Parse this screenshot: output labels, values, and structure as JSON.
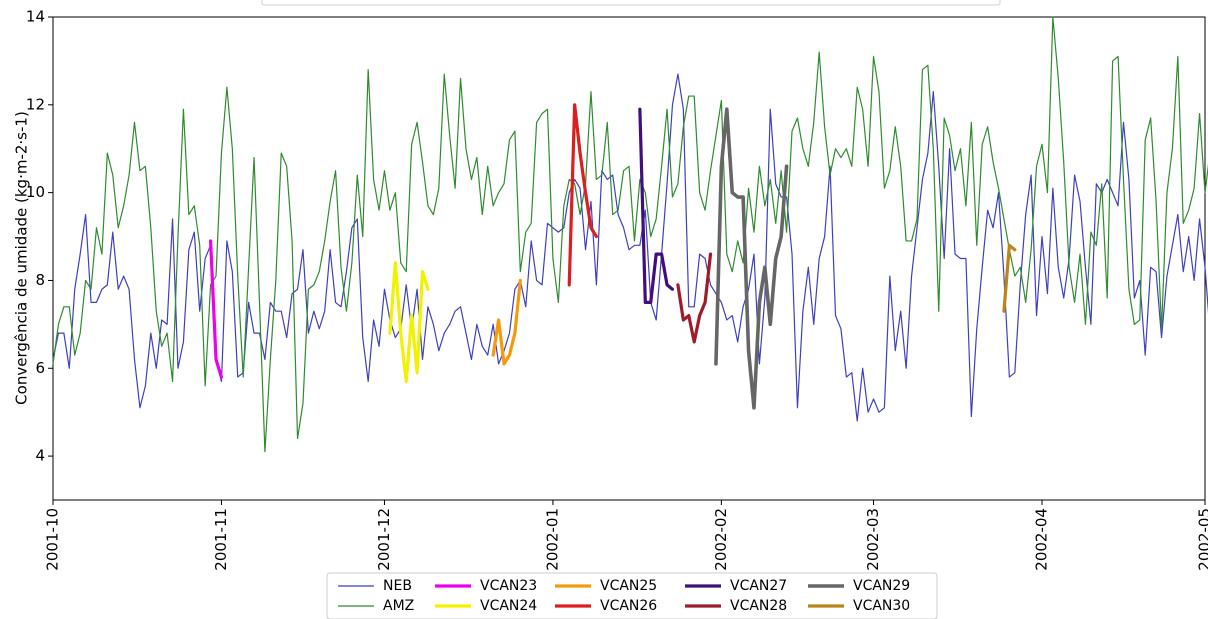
{
  "chart_data": {
    "type": "line",
    "title": "",
    "xlabel": "",
    "ylabel": "Convergência de umidade (kg·m-2·s-1)",
    "x_range": [
      "2001-10-01",
      "2002-05-01"
    ],
    "ylim": [
      3,
      14
    ],
    "grid": false,
    "legend_position": "bottom-center",
    "x_tick_labels": [
      "2001-10",
      "2001-11",
      "2001-12",
      "2002-01",
      "2002-02",
      "2002-03",
      "2002-04",
      "2002-05"
    ],
    "x_tick_dates": [
      "2001-10-01",
      "2001-11-01",
      "2001-12-01",
      "2002-01-01",
      "2002-02-01",
      "2002-03-01",
      "2002-04-01",
      "2002-05-01"
    ],
    "y_ticks": [
      4,
      6,
      8,
      10,
      12,
      14
    ],
    "start_date": "2001-10-01",
    "series": [
      {
        "name": "NEB",
        "color": "#3f3fbf",
        "width": 1.2,
        "start": "2001-10-01",
        "values": [
          6.2,
          6.8,
          6.8,
          6.0,
          7.8,
          8.6,
          9.5,
          7.5,
          7.5,
          7.8,
          7.9,
          9.1,
          7.8,
          8.1,
          7.8,
          6.2,
          5.1,
          5.6,
          6.8,
          6.0,
          7.1,
          7.0,
          9.4,
          6.0,
          6.6,
          8.7,
          9.1,
          7.3,
          8.5,
          8.8,
          6.2,
          5.7,
          8.9,
          8.2,
          5.8,
          5.9,
          7.5,
          6.8,
          6.8,
          6.2,
          7.5,
          7.3,
          7.3,
          6.7,
          7.7,
          7.8,
          8.7,
          6.8,
          7.3,
          6.9,
          7.3,
          8.7,
          7.5,
          7.4,
          8.2,
          9.2,
          9.4,
          6.7,
          5.7,
          7.1,
          6.5,
          7.8,
          7.1,
          6.7,
          6.9,
          7.9,
          6.9,
          7.8,
          6.2,
          7.4,
          7.0,
          6.4,
          6.8,
          7.0,
          7.3,
          7.4,
          6.8,
          6.2,
          7.0,
          6.5,
          6.3,
          7.0,
          6.1,
          6.4,
          6.8,
          7.8,
          8.0,
          7.4,
          8.9,
          8.0,
          7.9,
          9.3,
          9.2,
          9.1,
          9.2,
          10.0,
          10.3,
          10.1,
          8.7,
          9.8,
          7.9,
          10.5,
          10.3,
          10.4,
          9.5,
          9.2,
          8.7,
          8.8,
          8.8,
          9.6,
          7.5,
          7.1,
          8.6,
          10.2,
          12.0,
          12.7,
          11.9,
          7.4,
          7.4,
          8.6,
          8.5,
          7.9,
          7.7,
          7.5,
          7.1,
          7.2,
          6.6,
          7.4,
          7.8,
          8.6,
          6.1,
          7.6,
          11.9,
          10.2,
          9.9,
          9.9,
          8.6,
          5.1,
          7.3,
          8.3,
          7.0,
          8.5,
          9.0,
          10.6,
          7.2,
          6.9,
          5.8,
          5.9,
          4.8,
          6.0,
          5.0,
          5.3,
          5.0,
          5.1,
          8.1,
          6.4,
          7.3,
          6.0,
          8.1,
          9.2,
          10.3,
          10.9,
          12.3,
          10.6,
          8.5,
          11.0,
          8.6,
          8.5,
          8.5,
          4.9,
          6.9,
          8.3,
          9.6,
          9.2,
          10.0,
          8.1,
          5.8,
          5.9,
          7.9,
          9.5,
          10.4,
          7.2,
          9.0,
          7.7,
          10.1,
          8.3,
          7.6,
          8.5,
          10.4,
          9.8,
          8.3,
          7.0,
          10.2,
          10.0,
          10.3,
          10.0,
          9.7,
          11.6,
          10.3,
          7.6,
          8.0,
          6.3,
          8.3,
          8.2,
          6.7,
          8.1,
          8.8,
          9.5,
          8.2,
          9.0,
          8.0,
          9.4,
          8.3,
          6.7,
          8.6,
          8.4,
          9.2
        ]
      },
      {
        "name": "AMZ",
        "color": "#2e8b2e",
        "width": 1.2,
        "start": "2001-10-01",
        "values": [
          6.1,
          7.0,
          7.4,
          7.4,
          6.3,
          6.8,
          8.0,
          7.8,
          9.2,
          8.6,
          10.9,
          10.4,
          9.2,
          9.7,
          10.4,
          11.6,
          10.5,
          10.6,
          9.2,
          7.3,
          6.5,
          6.8,
          5.7,
          9.0,
          11.9,
          9.5,
          9.7,
          8.8,
          5.6,
          7.9,
          8.1,
          10.9,
          12.4,
          11.0,
          8.1,
          5.8,
          8.3,
          10.8,
          7.5,
          4.1,
          6.2,
          8.0,
          10.9,
          10.6,
          8.9,
          4.4,
          5.2,
          7.8,
          7.9,
          8.2,
          8.9,
          9.8,
          10.5,
          8.3,
          7.3,
          8.4,
          10.4,
          9.0,
          12.8,
          10.3,
          9.6,
          10.5,
          9.6,
          10.0,
          8.4,
          8.2,
          11.1,
          11.6,
          10.7,
          9.7,
          9.5,
          10.1,
          12.7,
          11.3,
          10.1,
          12.6,
          11.0,
          10.3,
          10.8,
          9.5,
          10.6,
          9.7,
          10.0,
          10.2,
          11.2,
          11.4,
          8.2,
          9.1,
          9.3,
          11.6,
          11.8,
          11.9,
          8.5,
          7.5,
          9.7,
          10.3,
          10.2,
          9.5,
          10.2,
          12.3,
          10.3,
          10.4,
          11.6,
          9.5,
          9.6,
          10.5,
          10.6,
          8.9,
          10.3,
          10.0,
          9.0,
          9.4,
          10.6,
          11.9,
          9.9,
          10.2,
          11.5,
          12.2,
          12.2,
          10.0,
          9.6,
          10.5,
          11.3,
          12.1,
          8.6,
          8.2,
          8.9,
          8.4,
          10.1,
          9.1,
          10.6,
          9.7,
          10.3,
          9.3,
          10.5,
          9.1,
          11.4,
          11.7,
          11.0,
          10.6,
          11.6,
          13.2,
          11.5,
          10.4,
          11.0,
          10.8,
          11.0,
          10.6,
          12.4,
          11.9,
          10.6,
          13.1,
          12.3,
          10.1,
          10.5,
          11.5,
          10.6,
          8.9,
          8.9,
          9.4,
          12.8,
          12.9,
          11.0,
          7.3,
          11.7,
          11.3,
          10.5,
          11.0,
          9.7,
          11.6,
          8.8,
          11.1,
          11.5,
          10.7,
          10.1,
          9.4,
          8.7,
          8.1,
          8.3,
          7.5,
          8.7,
          10.6,
          11.1,
          10.0,
          14.0,
          12.6,
          10.7,
          8.3,
          7.5,
          8.6,
          7.0,
          9.1,
          8.8,
          10.2,
          7.6,
          13.0,
          13.1,
          10.3,
          7.8,
          7.0,
          7.1,
          11.2,
          11.7,
          9.8,
          6.9,
          10.0,
          11.0,
          13.1,
          9.3,
          9.6,
          10.1,
          11.8,
          10.0,
          11.0,
          8.6,
          9.5,
          9.9,
          12.8,
          10.0,
          9.9,
          6.6,
          8.6,
          10.2,
          9.0
        ]
      },
      {
        "name": "VCAN23",
        "color": "#ee00ee",
        "width": 3.2,
        "start": "2001-10-30",
        "values": [
          8.9,
          6.2,
          5.8
        ]
      },
      {
        "name": "VCAN24",
        "color": "#f2f200",
        "width": 3.2,
        "start": "2001-12-02",
        "values": [
          6.8,
          8.4,
          6.8,
          5.7,
          7.2,
          5.9,
          8.2,
          7.8
        ]
      },
      {
        "name": "VCAN25",
        "color": "#f59a0c",
        "width": 3.2,
        "start": "2001-12-21",
        "values": [
          6.3,
          7.1,
          6.1,
          6.3,
          6.8,
          8.0
        ]
      },
      {
        "name": "VCAN26",
        "color": "#d91f1f",
        "width": 3.2,
        "start": "2002-01-04",
        "values": [
          7.9,
          12.0,
          10.9,
          10.0,
          9.2,
          9.0
        ]
      },
      {
        "name": "VCAN27",
        "color": "#3f0f7a",
        "width": 3.2,
        "start": "2002-01-17",
        "values": [
          11.9,
          7.5,
          7.5,
          8.6,
          8.6,
          7.9,
          7.8
        ]
      },
      {
        "name": "VCAN28",
        "color": "#9c1c2a",
        "width": 3.2,
        "start": "2002-01-24",
        "values": [
          7.9,
          7.1,
          7.2,
          6.6,
          7.2,
          7.5,
          8.6
        ]
      },
      {
        "name": "VCAN29",
        "color": "#666666",
        "width": 3.6,
        "start": "2002-01-31",
        "values": [
          6.1,
          10.6,
          11.9,
          10.0,
          9.9,
          9.9,
          6.4,
          5.1,
          7.5,
          8.3,
          7.0,
          8.5,
          9.0,
          10.6
        ]
      },
      {
        "name": "VCAN30",
        "color": "#b8861a",
        "width": 3.2,
        "start": "2002-03-25",
        "values": [
          7.3,
          8.8,
          8.7
        ]
      }
    ],
    "legend": [
      {
        "label": "NEB",
        "color": "#3f3fbf",
        "width": 1.2
      },
      {
        "label": "AMZ",
        "color": "#2e8b2e",
        "width": 1.2
      },
      {
        "label": "VCAN23",
        "color": "#ee00ee",
        "width": 3.2
      },
      {
        "label": "VCAN24",
        "color": "#f2f200",
        "width": 3.2
      },
      {
        "label": "VCAN25",
        "color": "#f59a0c",
        "width": 3.2
      },
      {
        "label": "VCAN26",
        "color": "#d91f1f",
        "width": 3.2
      },
      {
        "label": "VCAN27",
        "color": "#3f0f7a",
        "width": 3.2
      },
      {
        "label": "VCAN28",
        "color": "#9c1c2a",
        "width": 3.2
      },
      {
        "label": "VCAN29",
        "color": "#666666",
        "width": 3.6
      },
      {
        "label": "VCAN30",
        "color": "#b8861a",
        "width": 3.2
      }
    ]
  }
}
